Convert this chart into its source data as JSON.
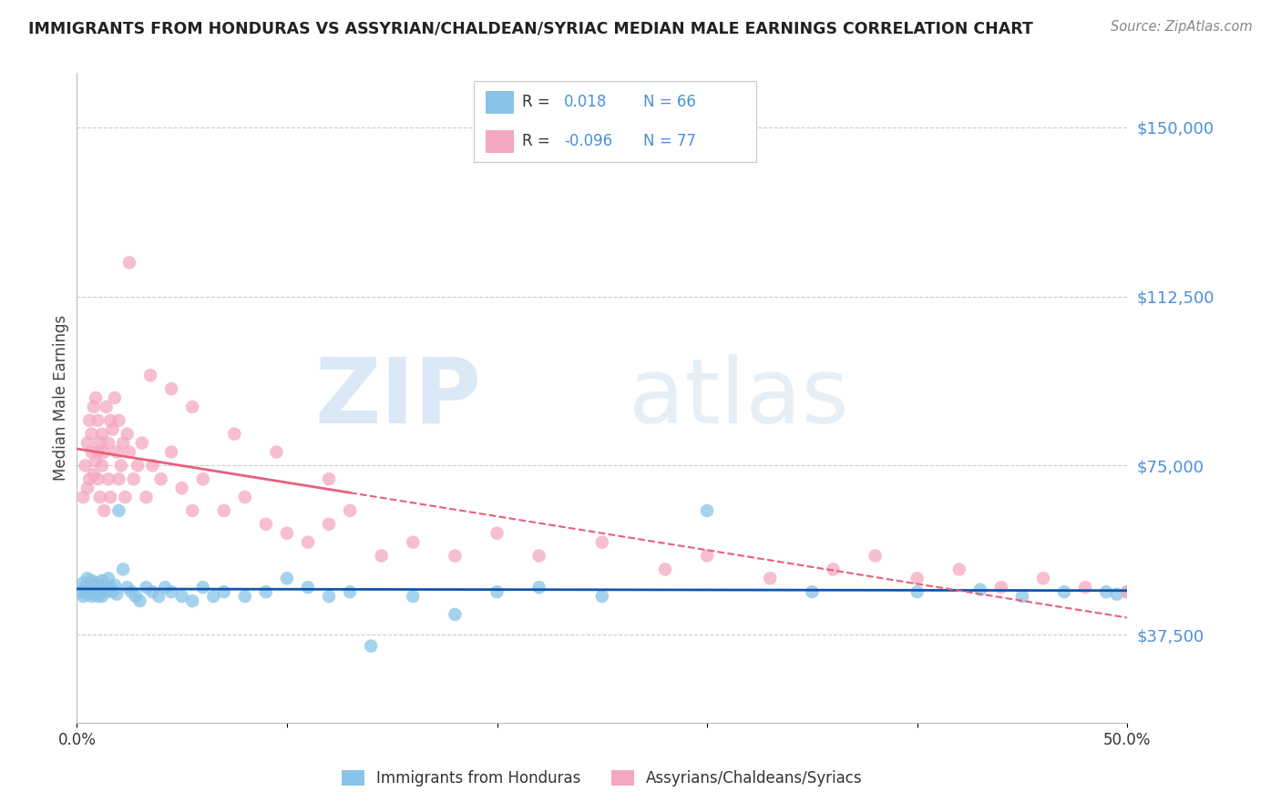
{
  "title": "IMMIGRANTS FROM HONDURAS VS ASSYRIAN/CHALDEAN/SYRIAC MEDIAN MALE EARNINGS CORRELATION CHART",
  "source": "Source: ZipAtlas.com",
  "ylabel": "Median Male Earnings",
  "yticks": [
    37500,
    75000,
    112500,
    150000
  ],
  "ytick_labels": [
    "$37,500",
    "$75,000",
    "$112,500",
    "$150,000"
  ],
  "xmin": 0.0,
  "xmax": 50.0,
  "ymin": 18000,
  "ymax": 162000,
  "blue_R": 0.018,
  "blue_N": 66,
  "pink_R": -0.096,
  "pink_N": 77,
  "blue_color": "#89c4e8",
  "pink_color": "#f4a8c0",
  "blue_line_color": "#1155aa",
  "pink_line_color": "#e8607a",
  "legend_blue_label": "Immigrants from Honduras",
  "legend_pink_label": "Assyrians/Chaldeans/Syriacs",
  "background_color": "#ffffff",
  "title_color": "#222222",
  "right_tick_color": "#4a90d9",
  "grid_color": "#cccccc",
  "blue_x": [
    0.2,
    0.3,
    0.3,
    0.4,
    0.4,
    0.5,
    0.5,
    0.6,
    0.6,
    0.7,
    0.7,
    0.8,
    0.8,
    0.9,
    0.9,
    1.0,
    1.0,
    1.0,
    1.1,
    1.1,
    1.2,
    1.2,
    1.3,
    1.4,
    1.5,
    1.6,
    1.7,
    1.8,
    1.9,
    2.0,
    2.2,
    2.4,
    2.6,
    2.8,
    3.0,
    3.3,
    3.6,
    3.9,
    4.2,
    4.5,
    5.0,
    5.5,
    6.0,
    6.5,
    7.0,
    8.0,
    9.0,
    10.0,
    11.0,
    12.0,
    13.0,
    14.0,
    16.0,
    18.0,
    20.0,
    22.0,
    25.0,
    30.0,
    35.0,
    40.0,
    43.0,
    45.0,
    47.0,
    49.0,
    49.5,
    50.0
  ],
  "blue_y": [
    47000,
    49000,
    46000,
    48000,
    47500,
    50000,
    46500,
    48000,
    47000,
    49500,
    46000,
    47000,
    48500,
    46500,
    47500,
    47000,
    49000,
    46000,
    48000,
    47000,
    49500,
    46000,
    48000,
    47000,
    50000,
    48000,
    47000,
    48500,
    46500,
    65000,
    52000,
    48000,
    47000,
    46000,
    45000,
    48000,
    47000,
    46000,
    48000,
    47000,
    46000,
    45000,
    48000,
    46000,
    47000,
    46000,
    47000,
    50000,
    48000,
    46000,
    47000,
    35000,
    46000,
    42000,
    47000,
    48000,
    46000,
    65000,
    47000,
    47000,
    47500,
    46000,
    47000,
    47000,
    46500,
    47000
  ],
  "pink_x": [
    0.3,
    0.4,
    0.5,
    0.5,
    0.6,
    0.6,
    0.7,
    0.7,
    0.8,
    0.8,
    0.9,
    0.9,
    1.0,
    1.0,
    1.0,
    1.1,
    1.1,
    1.2,
    1.2,
    1.3,
    1.3,
    1.4,
    1.5,
    1.5,
    1.6,
    1.6,
    1.7,
    1.8,
    1.9,
    2.0,
    2.0,
    2.1,
    2.2,
    2.3,
    2.4,
    2.5,
    2.7,
    2.9,
    3.1,
    3.3,
    3.6,
    4.0,
    4.5,
    5.0,
    5.5,
    6.0,
    7.0,
    8.0,
    9.0,
    10.0,
    11.0,
    12.0,
    13.0,
    14.5,
    16.0,
    18.0,
    20.0,
    22.0,
    25.0,
    28.0,
    30.0,
    33.0,
    36.0,
    38.0,
    40.0,
    42.0,
    44.0,
    46.0,
    48.0,
    50.0,
    2.5,
    3.5,
    4.5,
    5.5,
    7.5,
    9.5,
    12.0
  ],
  "pink_y": [
    68000,
    75000,
    80000,
    70000,
    85000,
    72000,
    82000,
    78000,
    88000,
    73000,
    90000,
    76000,
    85000,
    72000,
    78000,
    80000,
    68000,
    75000,
    82000,
    78000,
    65000,
    88000,
    80000,
    72000,
    85000,
    68000,
    83000,
    90000,
    78000,
    85000,
    72000,
    75000,
    80000,
    68000,
    82000,
    78000,
    72000,
    75000,
    80000,
    68000,
    75000,
    72000,
    78000,
    70000,
    65000,
    72000,
    65000,
    68000,
    62000,
    60000,
    58000,
    62000,
    65000,
    55000,
    58000,
    55000,
    60000,
    55000,
    58000,
    52000,
    55000,
    50000,
    52000,
    55000,
    50000,
    52000,
    48000,
    50000,
    48000,
    47000,
    120000,
    95000,
    92000,
    88000,
    82000,
    78000,
    72000
  ]
}
